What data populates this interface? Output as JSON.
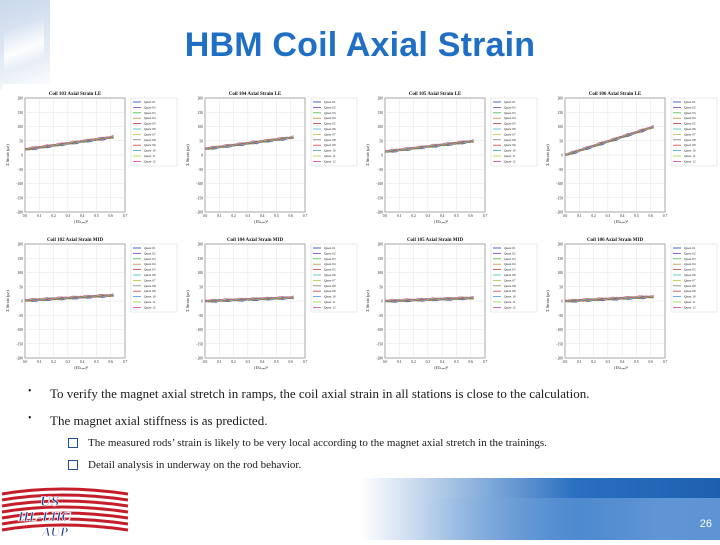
{
  "title": "HBM Coil Axial Strain",
  "plots": [
    {
      "title": "Coil 103 Axial Strain   LE",
      "xlabel": "(I/Iₙₒₘ)²",
      "ylabel": "Σ Strain (με)"
    },
    {
      "title": "Coil 104 Axial Strain   LE",
      "xlabel": "(I/Iₙₒₘ)²",
      "ylabel": "Σ Strain (με)"
    },
    {
      "title": "Coil 105 Axial Strain   LE",
      "xlabel": "(I/Iₙₒₘ)²",
      "ylabel": "Σ Strain (με)"
    },
    {
      "title": "Coil 106 Axial Strain   LE",
      "xlabel": "(I/Iₙₒₘ)²",
      "ylabel": "Σ Strain (με)"
    },
    {
      "title": "Coil 102 Axial Strain   MID",
      "xlabel": "(I/Iₙₒₘ)²",
      "ylabel": "Σ Strain (με)"
    },
    {
      "title": "Coil 104 Axial Strain   MID",
      "xlabel": "(I/Iₙₒₘ)²",
      "ylabel": "Σ Strain (με)"
    },
    {
      "title": "Coil 105 Axial Strain   MID",
      "xlabel": "(I/Iₙₒₘ)²",
      "ylabel": "Σ Strain (με)"
    },
    {
      "title": "Coil 106 Axial Strain   MID",
      "xlabel": "(I/Iₙₒₘ)²",
      "ylabel": "Σ Strain (με)"
    }
  ],
  "yticks": [
    "200",
    "150",
    "100",
    "50",
    "0",
    "−50",
    "−100",
    "−150",
    "−200"
  ],
  "xticks": [
    "0.0",
    "0.1",
    "0.2",
    "0.3",
    "0.4",
    "0.5",
    "0.6",
    "0.7"
  ],
  "legend": [
    "Quen 01",
    "Quen 02",
    "Quen 03",
    "Quen 04",
    "Quen 05",
    "Quen 06",
    "Quen 07",
    "Quen 08",
    "Quen 09",
    "Quen 10",
    "Quen 11",
    "Quen 12"
  ],
  "legend_colors": [
    "#1f3fbf",
    "#7a3fbf",
    "#3fbf3f",
    "#bf8f3f",
    "#bf3f3f",
    "#3fbfbf",
    "#bfbf3f",
    "#7f7f7f",
    "#d04040",
    "#40a0d0",
    "#a0d040",
    "#d040a0"
  ],
  "bullets": [
    "To verify the magnet axial stretch in ramps, the coil axial strain in all stations is close to the calculation.",
    "The magnet axial stiffness is as predicted."
  ],
  "subbullets": [
    "The measured rods’ strain is likely to be very local according to the magnet axial stretch in the trainings.",
    "Detail analysis in underway on the rod behavior."
  ],
  "logo": {
    "line1": "US",
    "line2": "HL-LHC",
    "line3": "AUP"
  },
  "page_number": "26"
}
